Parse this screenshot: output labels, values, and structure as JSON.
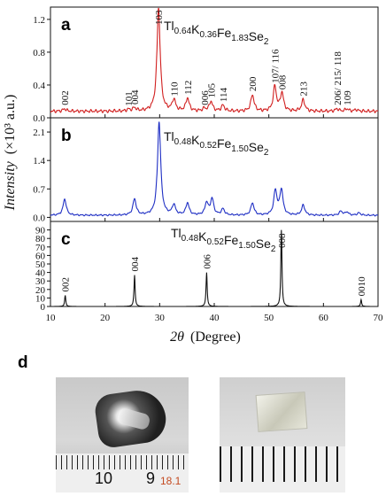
{
  "panel_letters": {
    "d": "d"
  },
  "x_axis": {
    "label_text": "(Degree)",
    "label_symbol": "2θ",
    "ticks": [
      10,
      20,
      30,
      40,
      50,
      60,
      70
    ],
    "range": [
      10,
      70
    ]
  },
  "y_axis": {
    "label_prefix": "Intensity",
    "label_suffix": "(×10³ a.u.)"
  },
  "colors": {
    "panel_a": "#d11f1f",
    "panel_b": "#1f2fc4",
    "panel_c": "#111111"
  },
  "photo_d": {
    "left_ruler_numbers": [
      "10",
      "9",
      "18.1"
    ],
    "left_ruler_number_colors": [
      "#111111",
      "#111111",
      "#c44a20"
    ]
  },
  "chart_data": [
    {
      "type": "line",
      "panel": "a",
      "compound": {
        "base": "Tl",
        "s1": "0.64",
        "el2": "K",
        "s2": "0.36",
        "el3": "Fe",
        "s3": "1.83",
        "el4": "Se",
        "s4": "2"
      },
      "ylim": [
        0,
        1.35
      ],
      "yticks": [
        0.0,
        0.4,
        0.8,
        1.2
      ],
      "ytick_labels": [
        "0.0",
        "0.4",
        "0.8",
        "1.2"
      ],
      "baseline": 0.08,
      "peaks": [
        {
          "x": 12.6,
          "h": 0.03,
          "label": "002"
        },
        {
          "x": 24.3,
          "h": 0.02,
          "label": "101"
        },
        {
          "x": 25.4,
          "h": 0.04,
          "label": "004"
        },
        {
          "x": 29.8,
          "h": 1.27,
          "label": "103"
        },
        {
          "x": 32.6,
          "h": 0.14,
          "label": "110"
        },
        {
          "x": 35.1,
          "h": 0.16,
          "label": "112"
        },
        {
          "x": 38.2,
          "h": 0.03,
          "label": "006"
        },
        {
          "x": 39.4,
          "h": 0.12,
          "label": "105"
        },
        {
          "x": 41.6,
          "h": 0.07,
          "label": "114"
        },
        {
          "x": 47.0,
          "h": 0.2,
          "label": "200"
        },
        {
          "x": 51.1,
          "h": 0.3,
          "label": "107/ 116"
        },
        {
          "x": 52.4,
          "h": 0.22,
          "label": "008"
        },
        {
          "x": 56.3,
          "h": 0.14,
          "label": "213"
        },
        {
          "x": 62.5,
          "h": 0.03,
          "label": "206/ 215/ 118"
        },
        {
          "x": 64.3,
          "h": 0.03,
          "label": "109"
        },
        {
          "x": 66.0,
          "h": 0.02
        }
      ]
    },
    {
      "type": "line",
      "panel": "b",
      "compound": {
        "base": "Tl",
        "s1": "0.48",
        "el2": "K",
        "s2": "0.52",
        "el3": "Fe",
        "s3": "1.50",
        "el4": "Se",
        "s4": "2"
      },
      "ylim": [
        -0.1,
        2.45
      ],
      "yticks": [
        0.0,
        0.7,
        1.4,
        2.1
      ],
      "ytick_labels": [
        "0.0",
        "0.7",
        "1.4",
        "2.1"
      ],
      "baseline": 0.05,
      "peaks": [
        {
          "x": 12.6,
          "h": 0.4
        },
        {
          "x": 25.4,
          "h": 0.4
        },
        {
          "x": 29.9,
          "h": 2.3
        },
        {
          "x": 32.6,
          "h": 0.25
        },
        {
          "x": 35.1,
          "h": 0.3
        },
        {
          "x": 38.6,
          "h": 0.3
        },
        {
          "x": 39.6,
          "h": 0.4
        },
        {
          "x": 41.6,
          "h": 0.15
        },
        {
          "x": 47.0,
          "h": 0.3
        },
        {
          "x": 51.2,
          "h": 0.6
        },
        {
          "x": 52.3,
          "h": 0.62
        },
        {
          "x": 56.3,
          "h": 0.25
        },
        {
          "x": 63.2,
          "h": 0.1
        },
        {
          "x": 64.3,
          "h": 0.08
        },
        {
          "x": 66.5,
          "h": 0.06
        }
      ]
    },
    {
      "type": "line",
      "panel": "c",
      "compound": {
        "base": "Tl",
        "s1": "0.48",
        "el2": "K",
        "s2": "0.52",
        "el3": "Fe",
        "s3": "1.50",
        "el4": "Se",
        "s4": "2"
      },
      "ylim": [
        0,
        100
      ],
      "yticks": [
        0,
        10,
        20,
        30,
        40,
        50,
        60,
        70,
        80,
        90
      ],
      "ytick_labels": [
        "0",
        "10",
        "20",
        "30",
        "40",
        "50",
        "60",
        "70",
        "80",
        "90"
      ],
      "baseline": 0,
      "peaks": [
        {
          "x": 12.7,
          "h": 13,
          "label": "002"
        },
        {
          "x": 25.4,
          "h": 37,
          "label": "004"
        },
        {
          "x": 38.6,
          "h": 40,
          "label": "006"
        },
        {
          "x": 52.3,
          "h": 90,
          "label": "008"
        },
        {
          "x": 66.9,
          "h": 8,
          "label": "0010"
        }
      ]
    }
  ]
}
